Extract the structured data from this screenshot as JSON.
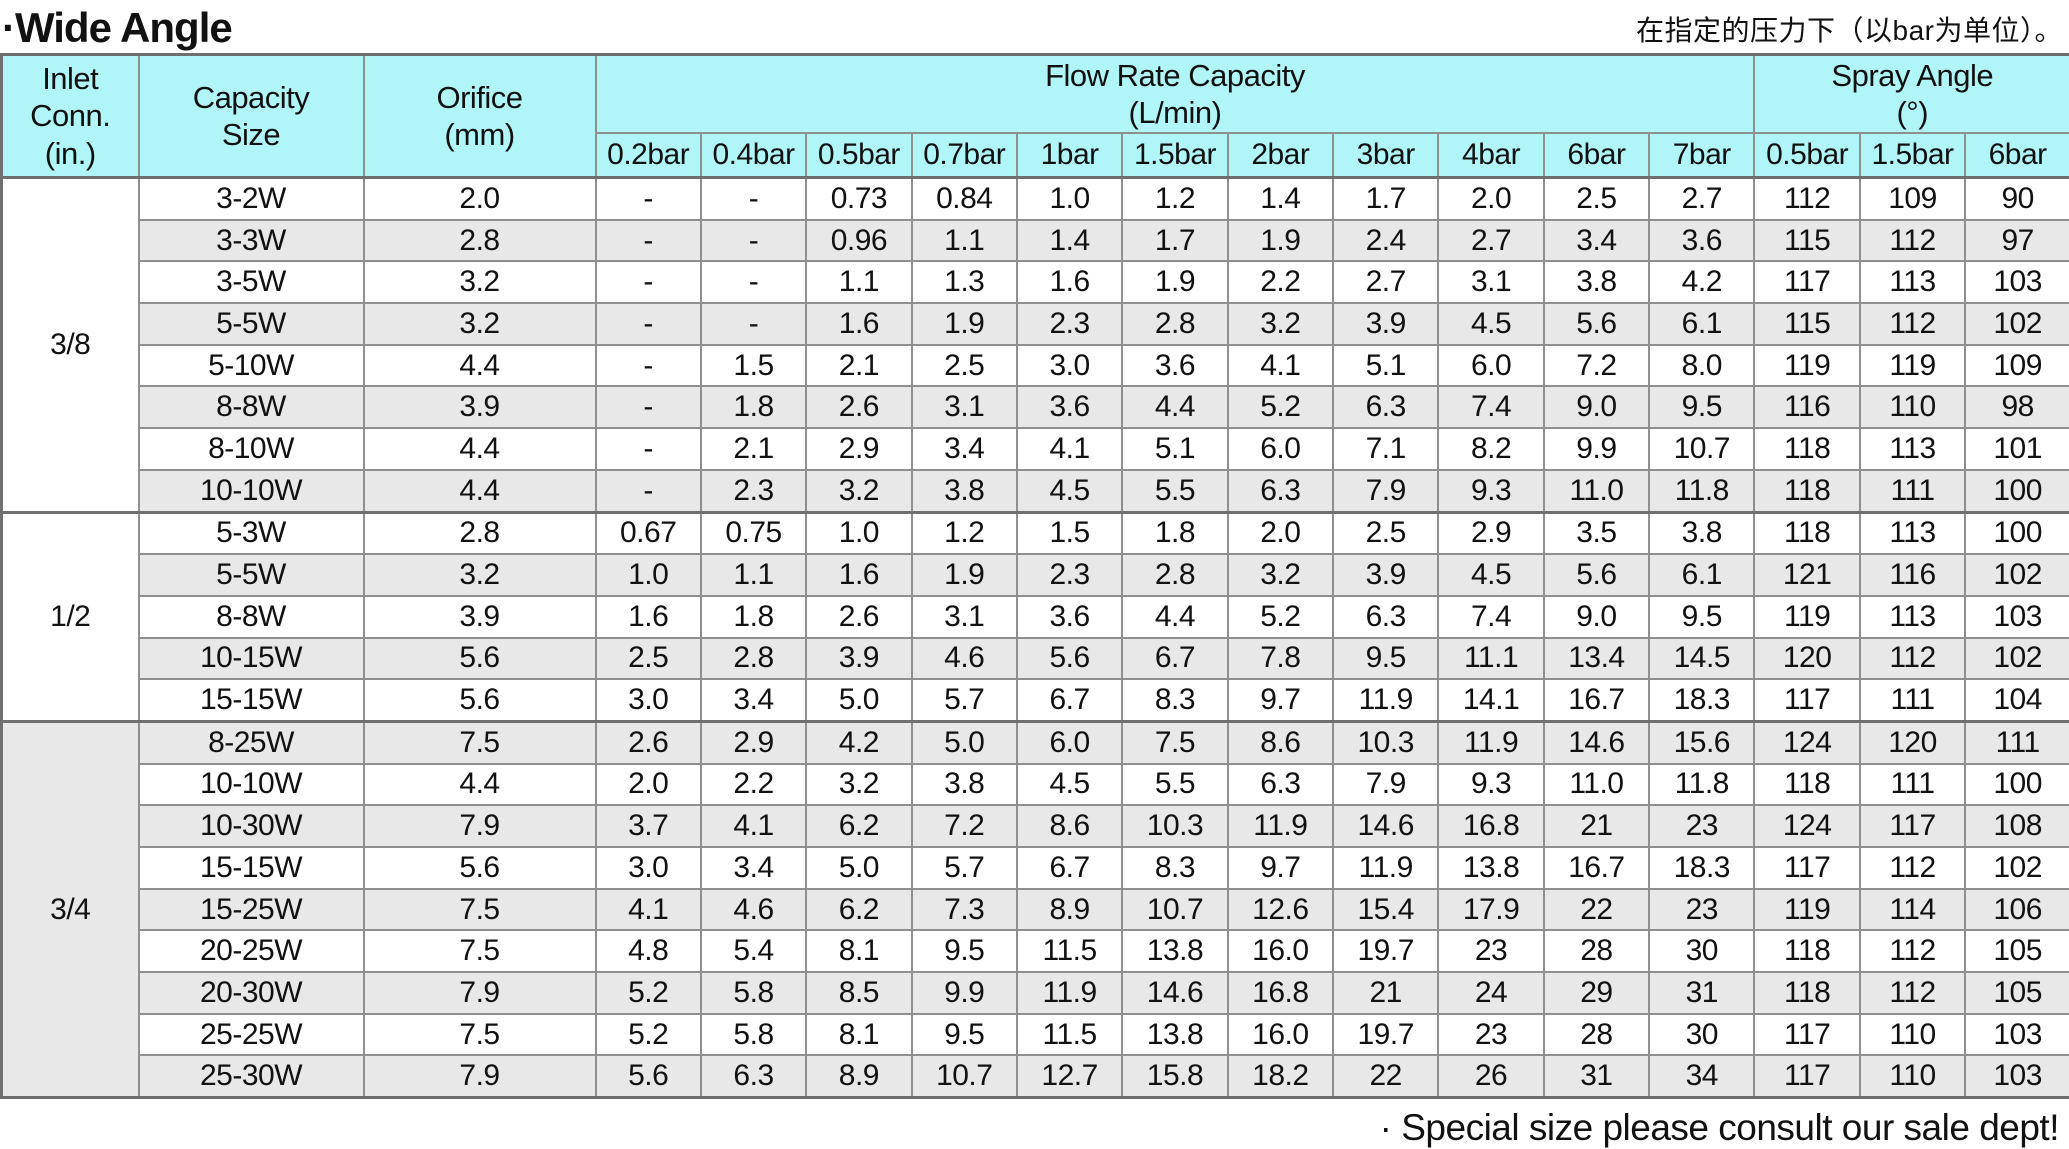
{
  "title": "·Wide Angle",
  "note_top": "在指定的压力下（以bar为单位）。",
  "note_bottom": "· Special size please consult our sale dept!",
  "colors": {
    "header_bg": "#b0f5f7",
    "alt_row_bg": "#e8e8e8",
    "border": "#8f8f8f",
    "strong_border": "#6f6f6f"
  },
  "table": {
    "headers": {
      "inlet": "Inlet\nConn.\n(in.)",
      "capacity": "Capacity\nSize",
      "orifice": "Orifice\n(mm)",
      "flow_group": "Flow Rate Capacity\n(L/min)",
      "spray_group": "Spray Angle\n(°)",
      "flow_cols": [
        "0.2bar",
        "0.4bar",
        "0.5bar",
        "0.7bar",
        "1bar",
        "1.5bar",
        "2bar",
        "3bar",
        "4bar",
        "6bar",
        "7bar"
      ],
      "spray_cols": [
        "0.5bar",
        "1.5bar",
        "6bar"
      ]
    },
    "sections": [
      {
        "inlet": "3/8",
        "rows": [
          {
            "size": "3-2W",
            "orifice": "2.0",
            "flow": [
              "-",
              "-",
              "0.73",
              "0.84",
              "1.0",
              "1.2",
              "1.4",
              "1.7",
              "2.0",
              "2.5",
              "2.7"
            ],
            "spray": [
              "112",
              "109",
              "90"
            ]
          },
          {
            "size": "3-3W",
            "orifice": "2.8",
            "flow": [
              "-",
              "-",
              "0.96",
              "1.1",
              "1.4",
              "1.7",
              "1.9",
              "2.4",
              "2.7",
              "3.4",
              "3.6"
            ],
            "spray": [
              "115",
              "112",
              "97"
            ]
          },
          {
            "size": "3-5W",
            "orifice": "3.2",
            "flow": [
              "-",
              "-",
              "1.1",
              "1.3",
              "1.6",
              "1.9",
              "2.2",
              "2.7",
              "3.1",
              "3.8",
              "4.2"
            ],
            "spray": [
              "117",
              "113",
              "103"
            ]
          },
          {
            "size": "5-5W",
            "orifice": "3.2",
            "flow": [
              "-",
              "-",
              "1.6",
              "1.9",
              "2.3",
              "2.8",
              "3.2",
              "3.9",
              "4.5",
              "5.6",
              "6.1"
            ],
            "spray": [
              "115",
              "112",
              "102"
            ]
          },
          {
            "size": "5-10W",
            "orifice": "4.4",
            "flow": [
              "-",
              "1.5",
              "2.1",
              "2.5",
              "3.0",
              "3.6",
              "4.1",
              "5.1",
              "6.0",
              "7.2",
              "8.0"
            ],
            "spray": [
              "119",
              "119",
              "109"
            ]
          },
          {
            "size": "8-8W",
            "orifice": "3.9",
            "flow": [
              "-",
              "1.8",
              "2.6",
              "3.1",
              "3.6",
              "4.4",
              "5.2",
              "6.3",
              "7.4",
              "9.0",
              "9.5"
            ],
            "spray": [
              "116",
              "110",
              "98"
            ]
          },
          {
            "size": "8-10W",
            "orifice": "4.4",
            "flow": [
              "-",
              "2.1",
              "2.9",
              "3.4",
              "4.1",
              "5.1",
              "6.0",
              "7.1",
              "8.2",
              "9.9",
              "10.7"
            ],
            "spray": [
              "118",
              "113",
              "101"
            ]
          },
          {
            "size": "10-10W",
            "orifice": "4.4",
            "flow": [
              "-",
              "2.3",
              "3.2",
              "3.8",
              "4.5",
              "5.5",
              "6.3",
              "7.9",
              "9.3",
              "11.0",
              "11.8"
            ],
            "spray": [
              "118",
              "111",
              "100"
            ]
          }
        ]
      },
      {
        "inlet": "1/2",
        "rows": [
          {
            "size": "5-3W",
            "orifice": "2.8",
            "flow": [
              "0.67",
              "0.75",
              "1.0",
              "1.2",
              "1.5",
              "1.8",
              "2.0",
              "2.5",
              "2.9",
              "3.5",
              "3.8"
            ],
            "spray": [
              "118",
              "113",
              "100"
            ]
          },
          {
            "size": "5-5W",
            "orifice": "3.2",
            "flow": [
              "1.0",
              "1.1",
              "1.6",
              "1.9",
              "2.3",
              "2.8",
              "3.2",
              "3.9",
              "4.5",
              "5.6",
              "6.1"
            ],
            "spray": [
              "121",
              "116",
              "102"
            ]
          },
          {
            "size": "8-8W",
            "orifice": "3.9",
            "flow": [
              "1.6",
              "1.8",
              "2.6",
              "3.1",
              "3.6",
              "4.4",
              "5.2",
              "6.3",
              "7.4",
              "9.0",
              "9.5"
            ],
            "spray": [
              "119",
              "113",
              "103"
            ]
          },
          {
            "size": "10-15W",
            "orifice": "5.6",
            "flow": [
              "2.5",
              "2.8",
              "3.9",
              "4.6",
              "5.6",
              "6.7",
              "7.8",
              "9.5",
              "11.1",
              "13.4",
              "14.5"
            ],
            "spray": [
              "120",
              "112",
              "102"
            ]
          },
          {
            "size": "15-15W",
            "orifice": "5.6",
            "flow": [
              "3.0",
              "3.4",
              "5.0",
              "5.7",
              "6.7",
              "8.3",
              "9.7",
              "11.9",
              "14.1",
              "16.7",
              "18.3"
            ],
            "spray": [
              "117",
              "111",
              "104"
            ]
          }
        ]
      },
      {
        "inlet": "3/4",
        "rows": [
          {
            "size": "8-25W",
            "orifice": "7.5",
            "flow": [
              "2.6",
              "2.9",
              "4.2",
              "5.0",
              "6.0",
              "7.5",
              "8.6",
              "10.3",
              "11.9",
              "14.6",
              "15.6"
            ],
            "spray": [
              "124",
              "120",
              "111"
            ]
          },
          {
            "size": "10-10W",
            "orifice": "4.4",
            "flow": [
              "2.0",
              "2.2",
              "3.2",
              "3.8",
              "4.5",
              "5.5",
              "6.3",
              "7.9",
              "9.3",
              "11.0",
              "11.8"
            ],
            "spray": [
              "118",
              "111",
              "100"
            ]
          },
          {
            "size": "10-30W",
            "orifice": "7.9",
            "flow": [
              "3.7",
              "4.1",
              "6.2",
              "7.2",
              "8.6",
              "10.3",
              "11.9",
              "14.6",
              "16.8",
              "21",
              "23"
            ],
            "spray": [
              "124",
              "117",
              "108"
            ]
          },
          {
            "size": "15-15W",
            "orifice": "5.6",
            "flow": [
              "3.0",
              "3.4",
              "5.0",
              "5.7",
              "6.7",
              "8.3",
              "9.7",
              "11.9",
              "13.8",
              "16.7",
              "18.3"
            ],
            "spray": [
              "117",
              "112",
              "102"
            ]
          },
          {
            "size": "15-25W",
            "orifice": "7.5",
            "flow": [
              "4.1",
              "4.6",
              "6.2",
              "7.3",
              "8.9",
              "10.7",
              "12.6",
              "15.4",
              "17.9",
              "22",
              "23"
            ],
            "spray": [
              "119",
              "114",
              "106"
            ]
          },
          {
            "size": "20-25W",
            "orifice": "7.5",
            "flow": [
              "4.8",
              "5.4",
              "8.1",
              "9.5",
              "11.5",
              "13.8",
              "16.0",
              "19.7",
              "23",
              "28",
              "30"
            ],
            "spray": [
              "118",
              "112",
              "105"
            ]
          },
          {
            "size": "20-30W",
            "orifice": "7.9",
            "flow": [
              "5.2",
              "5.8",
              "8.5",
              "9.9",
              "11.9",
              "14.6",
              "16.8",
              "21",
              "24",
              "29",
              "31"
            ],
            "spray": [
              "118",
              "112",
              "105"
            ]
          },
          {
            "size": "25-25W",
            "orifice": "7.5",
            "flow": [
              "5.2",
              "5.8",
              "8.1",
              "9.5",
              "11.5",
              "13.8",
              "16.0",
              "19.7",
              "23",
              "28",
              "30"
            ],
            "spray": [
              "117",
              "110",
              "103"
            ]
          },
          {
            "size": "25-30W",
            "orifice": "7.9",
            "flow": [
              "5.6",
              "6.3",
              "8.9",
              "10.7",
              "12.7",
              "15.8",
              "18.2",
              "22",
              "26",
              "31",
              "34"
            ],
            "spray": [
              "117",
              "110",
              "103"
            ]
          }
        ]
      }
    ]
  }
}
